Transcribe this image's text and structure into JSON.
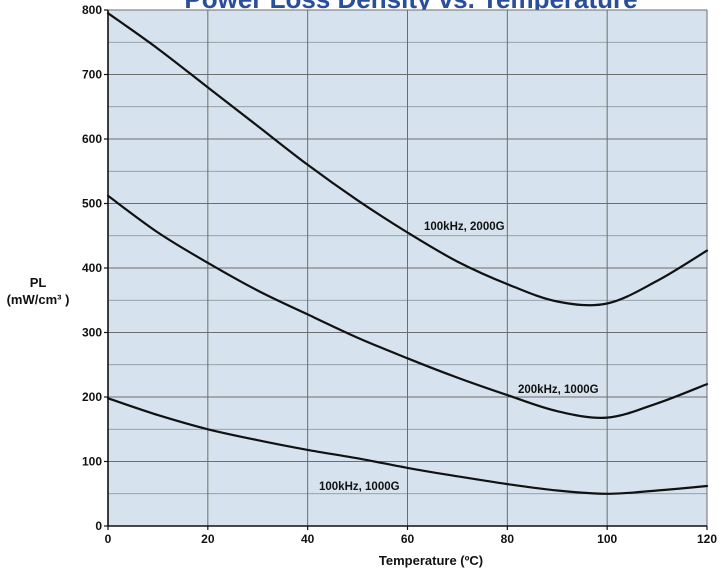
{
  "colors": {
    "title": "#2a4f9a",
    "plot_background": "#d6e3ee",
    "grid_major": "#6d6d6d",
    "grid_minor": "#7f8a92",
    "curve": "#111111"
  },
  "chart_data": {
    "type": "line",
    "title": "Power Loss Density vs. Temperature",
    "xlabel": "Temperature (ºC)",
    "ylabel": "PL",
    "ylabel_unit": "(mW/cm³ )",
    "xlim": [
      0,
      120
    ],
    "ylim": [
      0,
      800
    ],
    "x_ticks": [
      "0",
      "20",
      "40",
      "60",
      "80",
      "100",
      "120"
    ],
    "y_ticks": [
      "0",
      "100",
      "200",
      "300",
      "400",
      "500",
      "600",
      "700",
      "800"
    ],
    "grid": true,
    "series": [
      {
        "name": "100kHz, 2000G",
        "x": [
          0,
          10,
          20,
          30,
          40,
          50,
          60,
          70,
          80,
          90,
          100,
          110,
          120
        ],
        "y": [
          795,
          740,
          680,
          620,
          560,
          505,
          455,
          410,
          375,
          348,
          345,
          380,
          427
        ]
      },
      {
        "name": "200kHz, 1000G",
        "x": [
          0,
          10,
          20,
          30,
          40,
          50,
          60,
          70,
          80,
          90,
          100,
          110,
          120
        ],
        "y": [
          512,
          455,
          408,
          365,
          328,
          292,
          260,
          230,
          203,
          178,
          168,
          190,
          220
        ]
      },
      {
        "name": "100kHz, 1000G",
        "x": [
          0,
          10,
          20,
          30,
          40,
          50,
          60,
          70,
          80,
          90,
          100,
          110,
          120
        ],
        "y": [
          198,
          172,
          150,
          133,
          118,
          105,
          90,
          77,
          65,
          55,
          50,
          55,
          62
        ]
      }
    ]
  }
}
